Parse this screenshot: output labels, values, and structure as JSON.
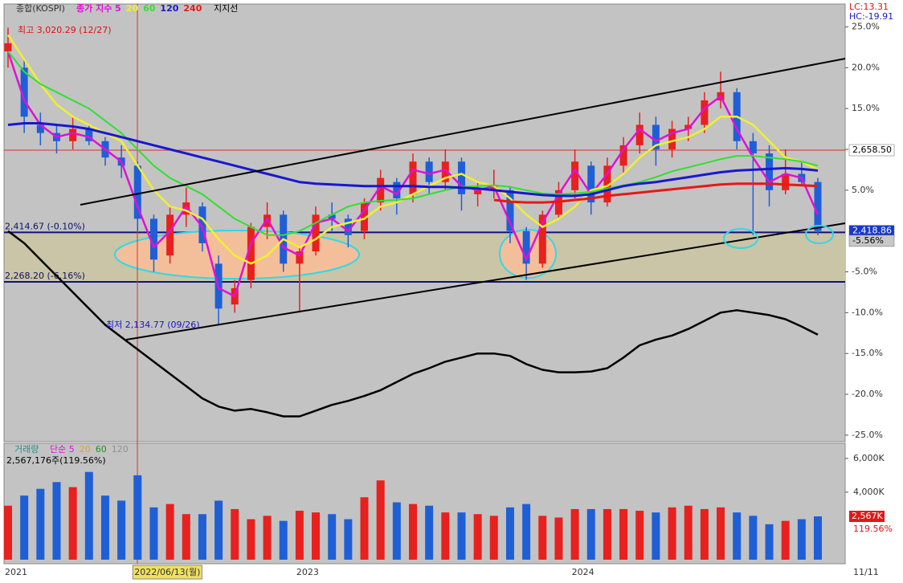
{
  "chart_data": [
    {
      "type": "candlestick",
      "title": "종합(KOSPI)",
      "categories": [
        "2021",
        null,
        null,
        null,
        null,
        null,
        null,
        null,
        "2022/06/13(월)",
        null,
        null,
        null,
        null,
        null,
        null,
        null,
        null,
        null,
        "2023",
        null,
        null,
        null,
        null,
        null,
        null,
        null,
        null,
        null,
        null,
        null,
        null,
        null,
        null,
        null,
        null,
        "2024",
        null,
        null,
        null,
        null,
        null,
        null,
        null,
        null,
        null,
        null,
        null,
        null,
        null,
        null,
        "11/11"
      ],
      "open": [
        22,
        20,
        13,
        12,
        11,
        12.5,
        11,
        9,
        8,
        1.5,
        -3,
        2,
        3,
        -4,
        -9,
        -6,
        0.5,
        2,
        -4,
        -2.5,
        2,
        1.5,
        0,
        3.5,
        6,
        4.5,
        8.5,
        6,
        8.5,
        4.5,
        5,
        5,
        0,
        -4,
        2,
        5,
        8,
        3.5,
        8,
        10.5,
        13,
        10,
        12.5,
        13,
        16,
        17,
        11,
        9.5,
        5,
        7,
        6
      ],
      "high": [
        24.9,
        21,
        14.5,
        13,
        14,
        13,
        11.5,
        10.5,
        8.5,
        2,
        3,
        5.3,
        3.5,
        -3,
        -6,
        1,
        3.5,
        2.5,
        -2,
        3,
        3.5,
        2,
        4,
        7.5,
        6.5,
        9.5,
        9,
        10,
        9,
        6,
        7.5,
        5.5,
        0.5,
        2.5,
        6,
        10,
        8.5,
        9,
        11.5,
        14.5,
        14,
        13.5,
        14,
        17,
        19.5,
        17.5,
        12,
        10.5,
        10,
        8.5,
        6.5
      ],
      "low": [
        20,
        12,
        10.5,
        9.5,
        10,
        10.5,
        8,
        6.5,
        0,
        -5,
        -4,
        0.5,
        -2.5,
        -11.5,
        -10,
        -7,
        -1,
        -5,
        -10,
        -3,
        0,
        -2,
        -1,
        2.5,
        2,
        3.5,
        4.5,
        5,
        2.5,
        3,
        4,
        -1.5,
        -6,
        -4.5,
        1.5,
        4,
        2,
        3,
        7,
        9.5,
        8,
        9,
        11,
        12,
        15,
        10,
        -0.5,
        3,
        4.5,
        5.5,
        -0.5
      ],
      "close": [
        23,
        14,
        12,
        11,
        12.5,
        11,
        9,
        8,
        1.5,
        -3.5,
        2,
        3.5,
        -1.5,
        -9.5,
        -7,
        0.5,
        2,
        -4,
        -2.5,
        2,
        1.5,
        -0.5,
        3.5,
        6.5,
        4,
        8.5,
        6,
        8.5,
        4.5,
        5,
        5.5,
        0,
        -4,
        2,
        5,
        8.5,
        3.5,
        8,
        10.5,
        13,
        10,
        12.5,
        13,
        16,
        17,
        11,
        9.5,
        5,
        7,
        6,
        0
      ],
      "up_color": "#e8201e",
      "down_color": "#1f5fd6",
      "ylim": [
        -25.8,
        27.8
      ],
      "yticks": [
        {
          "value": 25,
          "label": "25.0%"
        },
        {
          "value": 20,
          "label": "20.0%"
        },
        {
          "value": 15,
          "label": "15.0%"
        },
        {
          "value": 10,
          "label": "10.0%"
        },
        {
          "value": 5,
          "label": "5.0%"
        },
        {
          "value": -5,
          "label": "-5.0%"
        },
        {
          "value": -10,
          "label": "-10.0%"
        },
        {
          "value": -15,
          "label": "-15.0%"
        },
        {
          "value": -20,
          "label": "-20.0%"
        },
        {
          "value": -25,
          "label": "-25.0%"
        }
      ],
      "lines": [
        {
          "name": "종가 지수 5",
          "color": "#e010d8",
          "width": 2.5,
          "values": [
            22,
            16,
            13,
            11.5,
            12,
            11.5,
            10,
            8.5,
            3,
            -2,
            0,
            3,
            0.5,
            -7,
            -8,
            -1.5,
            1.5,
            -2,
            -3,
            1,
            1.5,
            0,
            2.5,
            5.5,
            4.5,
            7.5,
            7,
            7.5,
            5.5,
            5,
            5.5,
            1,
            -3.5,
            1,
            4.5,
            7.5,
            4.5,
            7,
            10,
            12.5,
            11,
            12,
            12.5,
            15,
            16.5,
            12.5,
            9,
            6,
            7,
            6.5,
            2
          ]
        },
        {
          "name": "20",
          "color": "#f0f030",
          "width": 2.5,
          "values": [
            24,
            21,
            18,
            15.5,
            14,
            13,
            12,
            11,
            8,
            5,
            3,
            2.5,
            1.5,
            -1,
            -3,
            -4,
            -3,
            -1,
            -2,
            -1,
            0.5,
            1,
            1.5,
            3,
            3.5,
            4.5,
            5.5,
            6.5,
            7,
            6,
            5.5,
            4,
            2,
            0.5,
            1.5,
            3,
            5,
            5.5,
            7,
            9,
            10.5,
            11,
            11.5,
            12.5,
            14,
            14,
            13,
            11,
            9,
            8.5,
            7.5
          ]
        },
        {
          "name": "60",
          "color": "#30e030",
          "width": 2,
          "values": [
            22,
            19.5,
            18,
            17,
            16,
            15,
            13.5,
            12,
            10,
            8,
            6.5,
            5.5,
            4.5,
            3,
            1.5,
            0.5,
            -0.5,
            -0.5,
            0,
            1,
            2,
            3,
            3.5,
            3.7,
            3.8,
            4,
            4.5,
            5,
            5.4,
            5.5,
            5.6,
            5.4,
            5,
            4.6,
            4.5,
            4.6,
            4.8,
            5.2,
            5.6,
            6,
            6.6,
            7.3,
            7.8,
            8.3,
            8.8,
            9.2,
            9.2,
            9,
            8.8,
            8.5,
            8
          ]
        },
        {
          "name": "120",
          "color": "#1818d0",
          "width": 3,
          "values": [
            13,
            13.2,
            13.2,
            13,
            12.8,
            12.5,
            12,
            11.5,
            11,
            10.5,
            10,
            9.5,
            9,
            8.5,
            8,
            7.5,
            7,
            6.5,
            6,
            5.8,
            5.7,
            5.6,
            5.5,
            5.5,
            5.5,
            5.5,
            5.4,
            5.4,
            5.3,
            5.2,
            5,
            4.8,
            4.6,
            4.4,
            4.3,
            4.3,
            4.5,
            5,
            5.5,
            5.8,
            6,
            6.3,
            6.6,
            6.9,
            7.2,
            7.4,
            7.5,
            7.6,
            7.7,
            7.6,
            7.4
          ]
        },
        {
          "name": "240",
          "color": "#e81818",
          "width": 3,
          "values": [
            null,
            null,
            null,
            null,
            null,
            null,
            null,
            null,
            null,
            null,
            null,
            null,
            null,
            null,
            null,
            null,
            null,
            null,
            null,
            null,
            null,
            null,
            null,
            null,
            null,
            null,
            null,
            null,
            null,
            null,
            3.8,
            3.6,
            3.5,
            3.5,
            3.6,
            3.8,
            4,
            4.3,
            4.5,
            4.7,
            4.9,
            5.1,
            5.3,
            5.5,
            5.7,
            5.8,
            5.8,
            5.8,
            5.7,
            5.6,
            5.5
          ]
        },
        {
          "color": "#000000",
          "width": 2.5,
          "values": [
            0,
            -1.5,
            -3.5,
            -5.5,
            -7.5,
            -9.5,
            -11.5,
            -13,
            -14.5,
            -16,
            -17.5,
            -19,
            -20.5,
            -21.5,
            -22,
            -21.8,
            -22.2,
            -22.7,
            -22.7,
            -22,
            -21.3,
            -20.8,
            -20.2,
            -19.5,
            -18.5,
            -17.5,
            -16.8,
            -16,
            -15.5,
            -15,
            -15,
            -15.3,
            -16.3,
            -17,
            -17.3,
            -17.3,
            -17.2,
            -16.8,
            -15.5,
            -14,
            -13.3,
            -12.8,
            -12,
            -11,
            -10,
            -9.7,
            -10,
            -10.3,
            -10.8,
            -11.7,
            -12.7
          ]
        }
      ],
      "support_label": "지지선",
      "high_label": "최고 3,020.29 (12/27)",
      "low_label": "최저 2,134.77 (09/26)",
      "lc_label": "LC:13.31",
      "hc_label": "HC:-19.91",
      "levels": [
        {
          "label": "2,414.67 (-0.10%)",
          "value": -0.17,
          "color": "#101080"
        },
        {
          "label": "2,268.20 (-6.16%)",
          "value": -6.23,
          "color": "#101080"
        }
      ],
      "zone_color": "#c9c5a6",
      "ref_line": {
        "value": 9.9,
        "color": "#d03030"
      },
      "price_tags": [
        {
          "label": "2,658.50",
          "value": 9.9,
          "color": "#ffffff",
          "text_color": "#000000"
        },
        {
          "label": "2,418.86",
          "value": 0,
          "color": "#1838c8",
          "text_color": "#ffffff"
        },
        {
          "label": "-5.56%",
          "value": -1.2,
          "color": "#c8c8c8",
          "text_color": "#000000"
        }
      ]
    },
    {
      "type": "bar",
      "title": "거래량",
      "values": [
        3200,
        3800,
        4200,
        4600,
        4300,
        5200,
        3800,
        3500,
        5000,
        3100,
        3300,
        2700,
        2700,
        3500,
        3000,
        2400,
        2600,
        2300,
        2900,
        2800,
        2700,
        2400,
        3700,
        4700,
        3400,
        3300,
        3200,
        2800,
        2800,
        2700,
        2600,
        3100,
        3300,
        2600,
        2500,
        3000,
        3000,
        3000,
        3000,
        2900,
        2800,
        3100,
        3200,
        3000,
        3100,
        2800,
        2600,
        2100,
        2300,
        2400,
        2567
      ],
      "ylim": [
        -240,
        6900
      ],
      "yticks": [
        {
          "value": 6000,
          "label": "6,000K"
        },
        {
          "value": 4000,
          "label": "4,000K"
        }
      ],
      "legend": [
        {
          "name": "단순 5",
          "color": "#e010d8"
        },
        {
          "name": "20",
          "color": "#e0a020"
        },
        {
          "name": "60",
          "color": "#209020"
        },
        {
          "name": "120",
          "color": "#909090"
        }
      ],
      "info_label": "2,567,176주(119.56%)",
      "last_tag": {
        "label": "2,567K",
        "value": 2567
      },
      "ratio_label": "119.56%"
    }
  ]
}
